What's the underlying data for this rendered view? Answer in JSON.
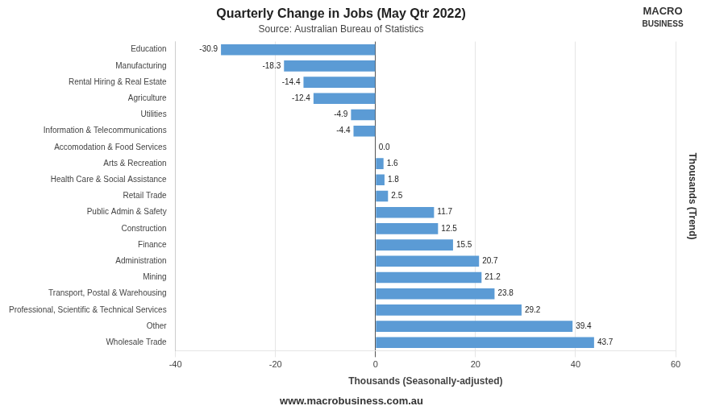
{
  "chart_data": {
    "type": "bar",
    "orientation": "horizontal",
    "title": "Quarterly Change in Jobs (May Qtr 2022)",
    "subtitle": "Source: Australian Bureau of Statistics",
    "xlabel": "Thousands (Seasonally-adjusted)",
    "ylabel": "Thousands (Trend)",
    "annotations": [
      "MACRO",
      "BUSINESS",
      "www.macrobusiness.com.au"
    ],
    "categories": [
      "Education",
      "Manufacturing",
      "Rental Hiring & Real Estate",
      "Agriculture",
      "Utilities",
      "Information & Telecommunications",
      "Accomodation & Food Services",
      "Arts & Recreation",
      "Health Care & Social Assistance",
      "Retail Trade",
      "Public Admin & Safety",
      "Construction",
      "Finance",
      "Administration",
      "Mining",
      "Transport, Postal & Warehousing",
      "Professional, Scientific & Technical Services",
      "Other",
      "Wholesale Trade"
    ],
    "values": [
      -30.9,
      -18.3,
      -14.4,
      -12.4,
      -4.9,
      -4.4,
      0.0,
      1.6,
      1.8,
      2.5,
      11.7,
      12.5,
      15.5,
      20.7,
      21.2,
      23.8,
      29.2,
      39.4,
      43.7
    ],
    "value_labels": [
      "-30.9",
      "-18.3",
      "-14.4",
      "-12.4",
      "-4.9",
      "-4.4",
      "0.0",
      "1.6",
      "1.8",
      "2.5",
      "11.7",
      "12.5",
      "15.5",
      "20.7",
      "21.2",
      "23.8",
      "29.2",
      "39.4",
      "43.7"
    ],
    "data_labels": true,
    "color": "#5b9bd5",
    "xlim": [
      -40,
      60
    ],
    "xticks": [
      -40,
      -20,
      0,
      20,
      40,
      60
    ],
    "grid": true
  }
}
